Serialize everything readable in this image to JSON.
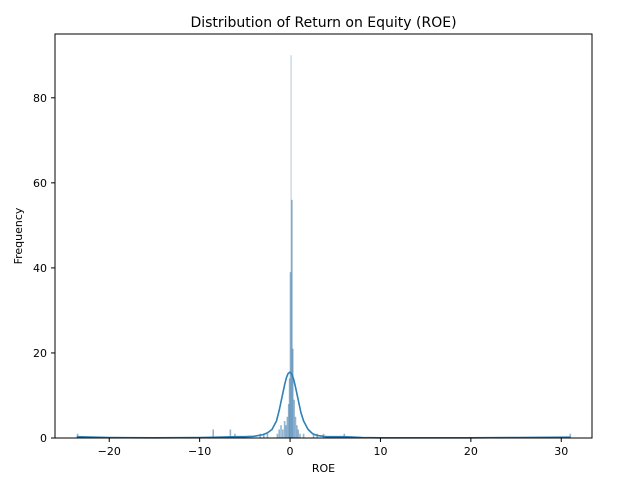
{
  "chart_data": {
    "type": "histogram",
    "title": "Distribution of Return on Equity (ROE)",
    "xlabel": "ROE",
    "ylabel": "Frequency",
    "xlim": [
      -26,
      33.4
    ],
    "ylim": [
      0,
      95
    ],
    "xticks": [
      -20,
      -10,
      0,
      10,
      20,
      30
    ],
    "xtick_labels": [
      "−20",
      "−10",
      "0",
      "10",
      "20",
      "30"
    ],
    "yticks": [
      0,
      20,
      40,
      60,
      80
    ],
    "ytick_labels": [
      "0",
      "20",
      "40",
      "60",
      "80"
    ],
    "grid": false,
    "bar_color": "#3a77a9",
    "kde_color": "#2f80b8",
    "bars": [
      {
        "x": -23.5,
        "count": 1
      },
      {
        "x": -8.5,
        "count": 2
      },
      {
        "x": -6.6,
        "count": 2
      },
      {
        "x": -6.1,
        "count": 1
      },
      {
        "x": -3.3,
        "count": 1
      },
      {
        "x": -2.9,
        "count": 1
      },
      {
        "x": -2.5,
        "count": 1
      },
      {
        "x": -1.4,
        "count": 1
      },
      {
        "x": -1.2,
        "count": 2
      },
      {
        "x": -1.0,
        "count": 3
      },
      {
        "x": -0.8,
        "count": 2
      },
      {
        "x": -0.6,
        "count": 4
      },
      {
        "x": -0.45,
        "count": 3
      },
      {
        "x": -0.3,
        "count": 5
      },
      {
        "x": -0.15,
        "count": 8
      },
      {
        "x": -0.05,
        "count": 14
      },
      {
        "x": 0.05,
        "count": 39
      },
      {
        "x": 0.12,
        "count": 90
      },
      {
        "x": 0.2,
        "count": 56
      },
      {
        "x": 0.3,
        "count": 21
      },
      {
        "x": 0.45,
        "count": 9
      },
      {
        "x": 0.6,
        "count": 5
      },
      {
        "x": 0.75,
        "count": 3
      },
      {
        "x": 0.9,
        "count": 2
      },
      {
        "x": 1.1,
        "count": 1
      },
      {
        "x": 1.5,
        "count": 1
      },
      {
        "x": 2.6,
        "count": 1
      },
      {
        "x": 3.0,
        "count": 1
      },
      {
        "x": 3.7,
        "count": 1
      },
      {
        "x": 6.0,
        "count": 1
      },
      {
        "x": 31.0,
        "count": 1
      }
    ],
    "kde": {
      "x": [
        -23.6,
        -20,
        -15,
        -10,
        -8,
        -6,
        -5,
        -4,
        -3,
        -2.5,
        -2,
        -1.5,
        -1.2,
        -1,
        -0.8,
        -0.6,
        -0.4,
        -0.2,
        0,
        0.2,
        0.4,
        0.6,
        0.8,
        1,
        1.2,
        1.5,
        2,
        2.5,
        3,
        4,
        5,
        6,
        8,
        10,
        15,
        20,
        25,
        31
      ],
      "y": [
        0.3,
        0.1,
        0.05,
        0.1,
        0.2,
        0.3,
        0.3,
        0.4,
        0.8,
        1.2,
        2.0,
        4.0,
        6.5,
        8.5,
        10.5,
        12.5,
        14.2,
        15.2,
        15.5,
        15.0,
        13.8,
        12.0,
        10.0,
        8.0,
        6.0,
        4.0,
        2.0,
        1.0,
        0.6,
        0.3,
        0.3,
        0.3,
        0.1,
        0.05,
        0.05,
        0.05,
        0.1,
        0.2
      ]
    }
  }
}
